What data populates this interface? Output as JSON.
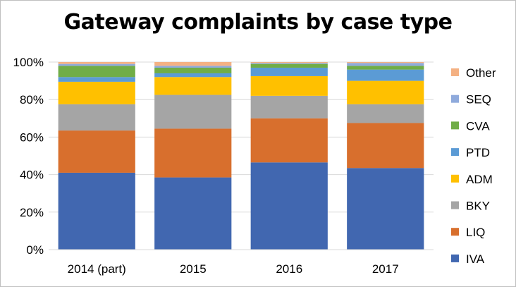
{
  "chart_data": {
    "type": "bar",
    "stacked": true,
    "percent": true,
    "title": "Gateway complaints by case type",
    "categories": [
      "2014 (part)",
      "2015",
      "2016",
      "2017"
    ],
    "y_ticks": [
      "0%",
      "20%",
      "40%",
      "60%",
      "80%",
      "100%"
    ],
    "ylim": [
      0,
      100
    ],
    "grid": true,
    "legend_position": "right",
    "series": [
      {
        "name": "IVA",
        "color": "#4167b0",
        "values": [
          41,
          38.5,
          46.5,
          43.5
        ]
      },
      {
        "name": "LIQ",
        "color": "#d86f2d",
        "values": [
          22.5,
          26,
          23.5,
          24
        ]
      },
      {
        "name": "BKY",
        "color": "#a5a5a5",
        "values": [
          14,
          18,
          12,
          10
        ]
      },
      {
        "name": "ADM",
        "color": "#ffc000",
        "values": [
          12,
          9.5,
          10.5,
          12.5
        ]
      },
      {
        "name": "PTD",
        "color": "#5b9bd5",
        "values": [
          2.5,
          2,
          4.5,
          6
        ]
      },
      {
        "name": "CVA",
        "color": "#70ad47",
        "values": [
          6,
          3,
          2,
          2
        ]
      },
      {
        "name": "SEQ",
        "color": "#8faadc",
        "values": [
          1,
          1,
          0.5,
          1.5
        ]
      },
      {
        "name": "Other",
        "color": "#f4b183",
        "values": [
          1,
          2,
          0.5,
          0.5
        ]
      }
    ]
  }
}
